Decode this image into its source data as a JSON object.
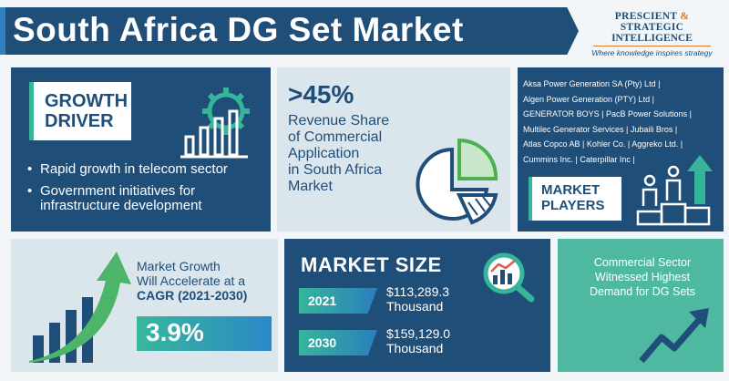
{
  "header": {
    "title": "South Africa DG Set Market",
    "logo": {
      "line1_a": "PRESCIENT",
      "line1_amp": "&",
      "line1_b": "STRATEGIC",
      "line2": "INTELLIGENCE",
      "tagline": "Where knowledge inspires strategy"
    }
  },
  "growth_driver": {
    "label_line1": "GROWTH",
    "label_line2": "DRIVER",
    "points": [
      "Rapid growth in telecom sector",
      "Government initiatives for infrastructure development"
    ]
  },
  "revenue_share": {
    "value": ">45%",
    "line1": "Revenue Share",
    "line2": "of Commercial",
    "line3": "Application",
    "line4": "in South Africa",
    "line5": "Market"
  },
  "market_players": {
    "list_lines": [
      "Aksa Power Generation SA (Pty) Ltd |",
      "Algen Power Generation (PTY) Ltd |",
      "GENERATOR BOYS | PacB Power Solutions |",
      "Multilec Generator Services | Jubaili Bros |",
      "Atlas Copco AB | Kohler Co. | Aggreko Ltd. |",
      "Cummins Inc. | Caterpillar Inc |"
    ],
    "label_line1": "MARKET",
    "label_line2": "PLAYERS"
  },
  "cagr": {
    "line1": "Market Growth",
    "line2": "Will Accelerate at a",
    "line3": "CAGR (2021-2030)",
    "value": "3.9%"
  },
  "market_size": {
    "title": "MARKET SIZE",
    "rows": [
      {
        "year": "2021",
        "value": "$113,289.3",
        "unit": "Thousand"
      },
      {
        "year": "2030",
        "value": "$159,129.0",
        "unit": "Thousand"
      }
    ]
  },
  "demand": {
    "line1": "Commercial Sector",
    "line2": "Witnessed Highest",
    "line3": "Demand for DG Sets"
  },
  "colors": {
    "navy": "#1f4e79",
    "teal": "#36b59b",
    "light_panel": "#dbe5ec",
    "green_panel": "#4fb8a1",
    "accent_orange": "#e07a2a"
  }
}
